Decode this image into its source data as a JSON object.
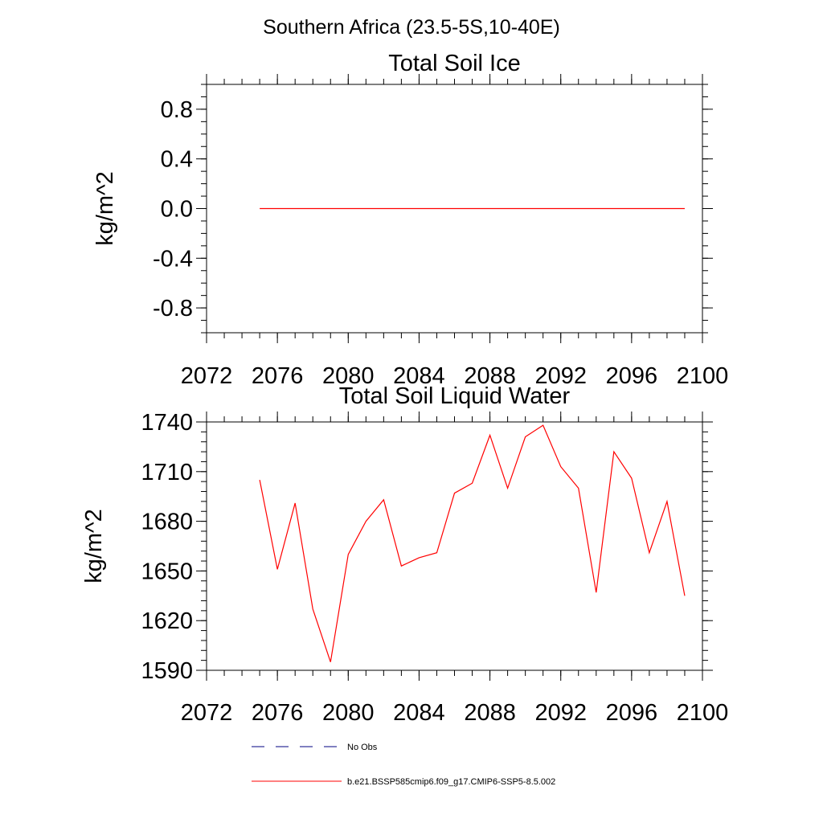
{
  "page_title": "Southern Africa (23.5-5S,10-40E)",
  "colors": {
    "series": "#ff0000",
    "obs": "#000080",
    "axis": "#000000"
  },
  "chart_data": [
    {
      "type": "line",
      "title": "Total Soil Ice",
      "xlabel": "",
      "ylabel": "kg/m^2",
      "xlim": [
        2072,
        2100
      ],
      "ylim": [
        -1.0,
        1.0
      ],
      "xticks": [
        2072,
        2076,
        2080,
        2084,
        2088,
        2092,
        2096,
        2100
      ],
      "yticks": [
        -0.8,
        -0.4,
        0.0,
        0.4,
        0.8
      ],
      "ytick_labels": [
        "-0.8",
        "-0.4",
        "0.0",
        "0.4",
        "0.8"
      ],
      "yminor_step": 0.1,
      "xminor_step": 1,
      "grid": false,
      "series": [
        {
          "name": "b.e21.BSSP585cmip6.f09_g17.CMIP6-SSP5-8.5.002",
          "x": [
            2075,
            2076,
            2077,
            2078,
            2079,
            2080,
            2081,
            2082,
            2083,
            2084,
            2085,
            2086,
            2087,
            2088,
            2089,
            2090,
            2091,
            2092,
            2093,
            2094,
            2095,
            2096,
            2097,
            2098,
            2099
          ],
          "values": [
            0,
            0,
            0,
            0,
            0,
            0,
            0,
            0,
            0,
            0,
            0,
            0,
            0,
            0,
            0,
            0,
            0,
            0,
            0,
            0,
            0,
            0,
            0,
            0,
            0
          ]
        }
      ]
    },
    {
      "type": "line",
      "title": "Total Soil Liquid Water",
      "xlabel": "",
      "ylabel": "kg/m^2",
      "xlim": [
        2072,
        2100
      ],
      "ylim": [
        1590,
        1740
      ],
      "xticks": [
        2072,
        2076,
        2080,
        2084,
        2088,
        2092,
        2096,
        2100
      ],
      "yticks": [
        1590,
        1620,
        1650,
        1680,
        1710,
        1740
      ],
      "ytick_labels": [
        "1590",
        "1620",
        "1650",
        "1680",
        "1710",
        "1740"
      ],
      "yminor_step": 6,
      "xminor_step": 1,
      "grid": false,
      "series": [
        {
          "name": "b.e21.BSSP585cmip6.f09_g17.CMIP6-SSP5-8.5.002",
          "x": [
            2075,
            2076,
            2077,
            2078,
            2079,
            2080,
            2081,
            2082,
            2083,
            2084,
            2085,
            2086,
            2087,
            2088,
            2089,
            2090,
            2091,
            2092,
            2093,
            2094,
            2095,
            2096,
            2097,
            2098,
            2099
          ],
          "values": [
            1705,
            1651,
            1691,
            1627,
            1595,
            1660,
            1680,
            1693,
            1653,
            1658,
            1661,
            1697,
            1703,
            1732,
            1700,
            1731,
            1738,
            1713,
            1700,
            1637,
            1722,
            1706,
            1661,
            1692,
            1635
          ]
        }
      ]
    }
  ],
  "legend": {
    "placement": "bottom",
    "items": [
      {
        "label": "No Obs",
        "style": "dashed",
        "color": "#000080"
      },
      {
        "label": "b.e21.BSSP585cmip6.f09_g17.CMIP6-SSP5-8.5.002",
        "style": "solid",
        "color": "#ff0000"
      }
    ]
  }
}
